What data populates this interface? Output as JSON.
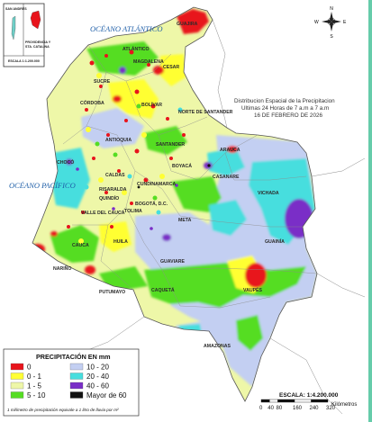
{
  "map_title": {
    "line1": "Distribucion Espacial de la Precipitacion",
    "line2": "Ultimas 24 Horas de 7 a.m  a  7 a.m",
    "line3": "16 DE FEBRERO DE 2026"
  },
  "oceans": {
    "atlantic": "OCÉANO ATLÁNTICO",
    "pacific": "OCÉANO PACÍFICO"
  },
  "inset": {
    "san_andres": "SAN ANDRÉS",
    "providencia_line1": "PROVIDENCIA Y",
    "providencia_line2": "STA. CATALINA",
    "scale": "ESCALA 1:1.200.000"
  },
  "compass": {
    "n": "N",
    "s": "S",
    "e": "E",
    "w": "W"
  },
  "departments": [
    {
      "name": "GUAJIRA",
      "color": "#2b2b2b"
    },
    {
      "name": "ATLÁNTICO",
      "color": "#2b2b2b"
    },
    {
      "name": "MAGDALENA",
      "color": "#2b2b2b"
    },
    {
      "name": "CESAR",
      "color": "#2b2b2b"
    },
    {
      "name": "SUCRE",
      "color": "#2b2b2b"
    },
    {
      "name": "CÓRDOBA",
      "color": "#2b2b2b"
    },
    {
      "name": "BOLÍVAR",
      "color": "#2b2b2b"
    },
    {
      "name": "NORTE DE SANTANDER",
      "color": "#2b2b2b"
    },
    {
      "name": "ANTIOQUIA",
      "color": "#2b2b2b"
    },
    {
      "name": "SANTANDER",
      "color": "#2b2b2b"
    },
    {
      "name": "ARAUCA",
      "color": "#2b2b2b"
    },
    {
      "name": "CHOCÓ",
      "color": "#2b2b2b"
    },
    {
      "name": "BOYACÁ",
      "color": "#2b2b2b"
    },
    {
      "name": "CASANARE",
      "color": "#2b2b2b"
    },
    {
      "name": "CALDAS",
      "color": "#2b2b2b"
    },
    {
      "name": "RISARALDA",
      "color": "#2b2b2b"
    },
    {
      "name": "CUNDINAMARCA",
      "color": "#2b2b2b"
    },
    {
      "name": "QUINDÍO",
      "color": "#2b2b2b"
    },
    {
      "name": "BOGOTÁ, D.C.",
      "color": "#2b2b2b"
    },
    {
      "name": "VICHADA",
      "color": "#2b2b2b"
    },
    {
      "name": "VALLE DEL CAUCA",
      "color": "#2b2b2b"
    },
    {
      "name": "TOLIMA",
      "color": "#2b2b2b"
    },
    {
      "name": "META",
      "color": "#2b2b2b"
    },
    {
      "name": "CAUCA",
      "color": "#2b2b2b"
    },
    {
      "name": "HUILA",
      "color": "#2b2b2b"
    },
    {
      "name": "GUAINÍA",
      "color": "#2b2b2b"
    },
    {
      "name": "GUAVIARE",
      "color": "#2b2b2b"
    },
    {
      "name": "NARIÑO",
      "color": "#2b2b2b"
    },
    {
      "name": "CAQUETÁ",
      "color": "#2b2b2b"
    },
    {
      "name": "VAUPÉS",
      "color": "#2b2b2b"
    },
    {
      "name": "PUTUMAYO",
      "color": "#2b2b2b"
    },
    {
      "name": "AMAZONAS",
      "color": "#2b2b2b"
    }
  ],
  "legend": {
    "title": "PRECIPITACIÓN EN mm",
    "classes": [
      {
        "label": "0",
        "color": "#e8141c"
      },
      {
        "label": "0 - 1",
        "color": "#ffff33"
      },
      {
        "label": "1 - 5",
        "color": "#eef7a8"
      },
      {
        "label": "5 - 10",
        "color": "#55dd22"
      },
      {
        "label": "10 - 20",
        "color": "#c3cff2"
      },
      {
        "label": "20 - 40",
        "color": "#46dede"
      },
      {
        "label": "40 - 60",
        "color": "#7a2ec7"
      },
      {
        "label": "Mayor de 60",
        "color": "#111111"
      }
    ],
    "footnote": "1 milímetro de precipitación equivale a 1 litro de lluvia por m²"
  },
  "scale_bar": {
    "title": "ESCALA: 1:4.200.000",
    "ticks": [
      "0",
      "40",
      "80",
      "160",
      "240",
      "320"
    ],
    "unit": "Kilómetros"
  }
}
